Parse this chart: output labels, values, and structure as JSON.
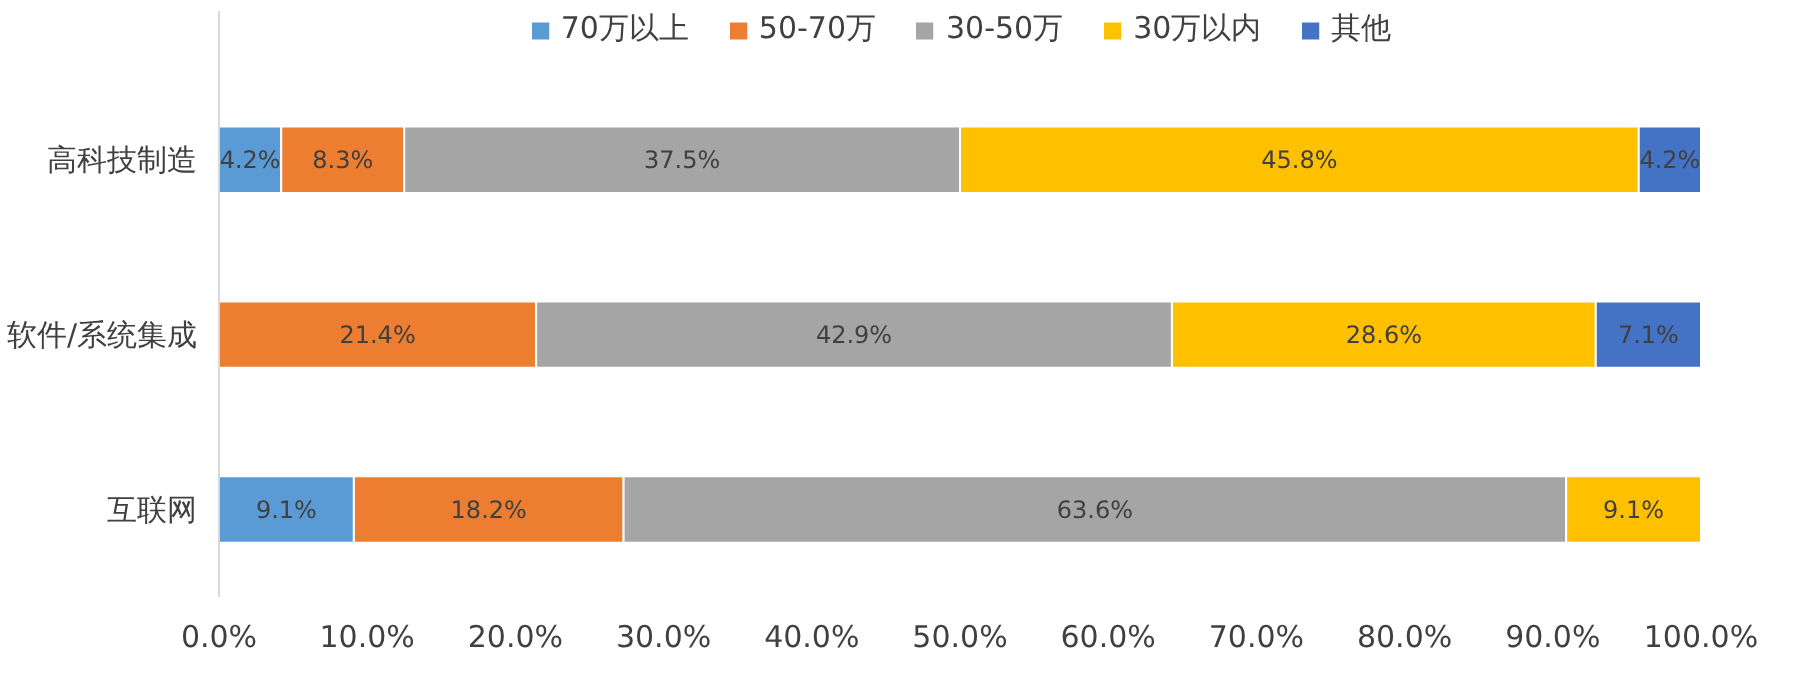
{
  "chart_data": {
    "type": "bar",
    "orientation": "horizontal",
    "stacked": true,
    "categories": [
      "高科技制造",
      "软件/系统集成",
      "互联网"
    ],
    "series": [
      {
        "name": "70万以上",
        "color": "#5b9bd5",
        "values": [
          4.2,
          null,
          9.1
        ],
        "value_labels": [
          "4.2%",
          null,
          "9.1%"
        ]
      },
      {
        "name": "50-70万",
        "color": "#ed7d31",
        "values": [
          8.3,
          21.4,
          18.2
        ],
        "value_labels": [
          "8.3%",
          "21.4%",
          "18.2%"
        ]
      },
      {
        "name": "30-50万",
        "color": "#a5a5a5",
        "values": [
          37.5,
          42.9,
          63.6
        ],
        "value_labels": [
          "37.5%",
          "42.9%",
          "63.6%"
        ]
      },
      {
        "name": "30万以内",
        "color": "#ffc000",
        "values": [
          45.8,
          28.6,
          9.1
        ],
        "value_labels": [
          "45.8%",
          "28.6%",
          "9.1%"
        ]
      },
      {
        "name": "其他",
        "color": "#4472c4",
        "values": [
          4.2,
          7.1,
          null
        ],
        "value_labels": [
          "4.2%",
          "7.1%",
          null
        ]
      }
    ],
    "xlim": [
      0,
      100
    ],
    "xticks": [
      {
        "value": 0,
        "label": "0.0%"
      },
      {
        "value": 10,
        "label": "10.0%"
      },
      {
        "value": 20,
        "label": "20.0%"
      },
      {
        "value": 30,
        "label": "30.0%"
      },
      {
        "value": 40,
        "label": "40.0%"
      },
      {
        "value": 50,
        "label": "50.0%"
      },
      {
        "value": 60,
        "label": "60.0%"
      },
      {
        "value": 70,
        "label": "70.0%"
      },
      {
        "value": 80,
        "label": "80.0%"
      },
      {
        "value": 90,
        "label": "90.0%"
      },
      {
        "value": 100,
        "label": "100.0%"
      }
    ],
    "grid": false,
    "legend": "top"
  }
}
